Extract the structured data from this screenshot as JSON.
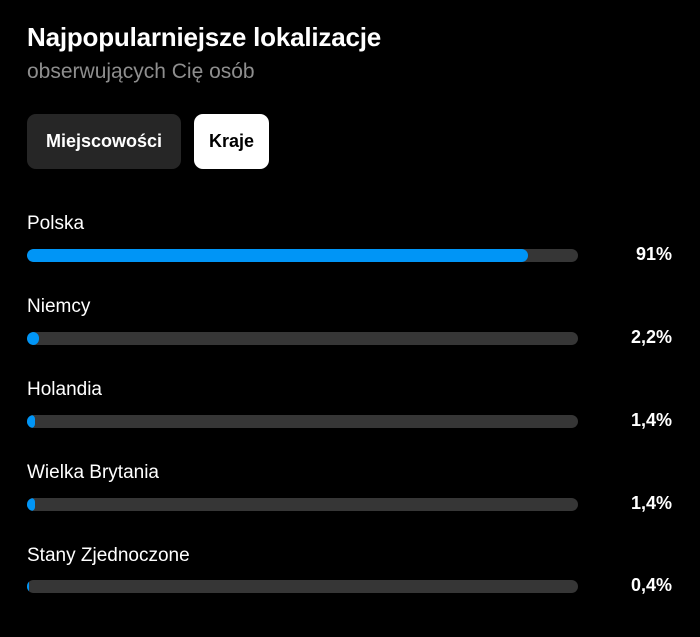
{
  "header": {
    "title": "Najpopularniejsze lokalizacje",
    "subtitle": "obserwujących Cię osób"
  },
  "tabs": [
    {
      "label": "Miejscowości",
      "selected": false
    },
    {
      "label": "Kraje",
      "selected": true
    }
  ],
  "locations": [
    {
      "name": "Polska",
      "value_label": "91%",
      "percent": 91
    },
    {
      "name": "Niemcy",
      "value_label": "2,2%",
      "percent": 2.2
    },
    {
      "name": "Holandia",
      "value_label": "1,4%",
      "percent": 1.4
    },
    {
      "name": "Wielka Brytania",
      "value_label": "1,4%",
      "percent": 1.4
    },
    {
      "name": "Stany Zjednoczone",
      "value_label": "0,4%",
      "percent": 0.4
    }
  ],
  "colors": {
    "background": "#000000",
    "accent": "#0095f6",
    "track": "#363636",
    "subtitle": "#8e8e8e",
    "tab_inactive": "#262626",
    "tab_active": "#ffffff"
  }
}
